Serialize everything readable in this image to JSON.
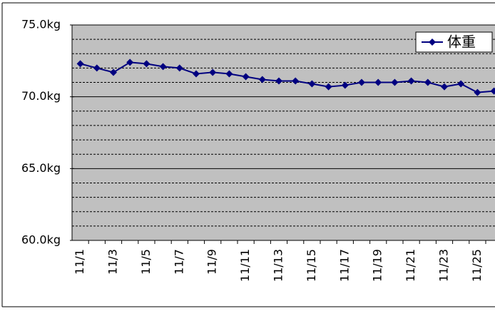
{
  "chart_data": {
    "type": "line",
    "categories": [
      "11/1",
      null,
      "11/3",
      null,
      "11/5",
      null,
      "11/7",
      null,
      "11/9",
      null,
      "11/11",
      null,
      "11/13",
      null,
      "11/15",
      null,
      "11/17",
      null,
      "11/19",
      null,
      "11/21",
      null,
      "11/23",
      null,
      "11/25",
      null
    ],
    "series": [
      {
        "name": "体重",
        "color": "#000080",
        "values": [
          72.3,
          72.0,
          71.7,
          72.4,
          72.3,
          72.1,
          72.0,
          71.6,
          71.7,
          71.6,
          71.4,
          71.2,
          71.1,
          71.1,
          70.9,
          70.7,
          70.8,
          71.0,
          71.0,
          71.0,
          71.1,
          71.0,
          70.7,
          70.9,
          70.3,
          70.4
        ]
      }
    ],
    "ylim": [
      60,
      75
    ],
    "yticks": [
      {
        "value": 60,
        "label": "60.0kg"
      },
      {
        "value": 65,
        "label": "65.0kg"
      },
      {
        "value": 70,
        "label": "70.0kg"
      },
      {
        "value": 75,
        "label": "75.0kg"
      }
    ],
    "minor_yticks": [
      61,
      62,
      63,
      64,
      66,
      67,
      68,
      69,
      71,
      72,
      73,
      74
    ],
    "grid": true,
    "legend": "top-right",
    "plot_color": "#c0c0c0"
  }
}
